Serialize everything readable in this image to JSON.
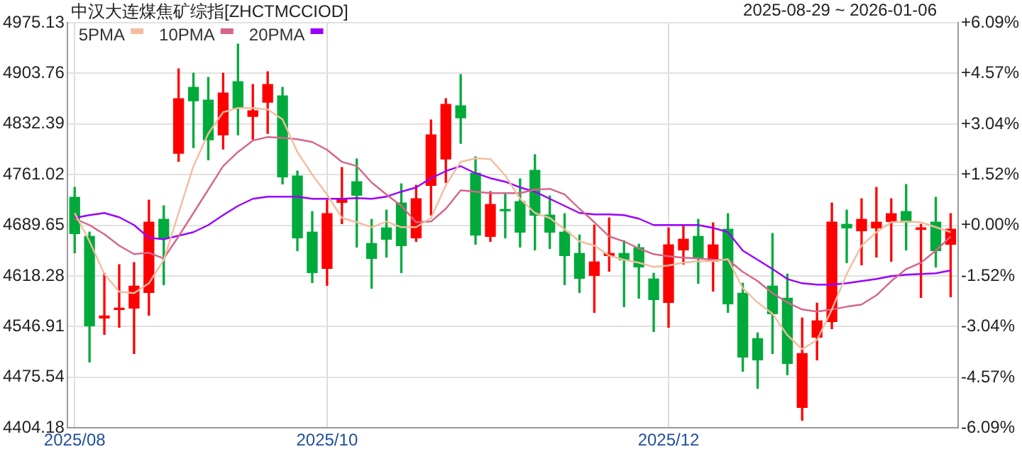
{
  "chart_data": {
    "type": "candlestick",
    "title": "中汉大连煤焦矿综指[ZHCTMCCIOD]",
    "subtitle": "2025-08-29 ~ 2026-01-06",
    "categories": [
      "2025/08",
      null,
      null,
      null,
      null,
      null,
      null,
      null,
      null,
      null,
      null,
      null,
      null,
      null,
      null,
      null,
      null,
      "2025/10",
      null,
      null,
      null,
      null,
      null,
      null,
      null,
      null,
      null,
      null,
      null,
      null,
      null,
      null,
      null,
      null,
      null,
      null,
      null,
      null,
      null,
      null,
      "2025/12",
      null,
      null,
      null,
      null,
      null,
      null,
      null,
      null,
      null,
      null,
      null,
      null,
      null,
      null,
      null,
      null,
      null,
      null,
      null
    ],
    "ohlc": [
      [
        4729,
        4743,
        4651,
        4678
      ],
      [
        4674,
        4680,
        4497,
        4548
      ],
      [
        4559,
        4622,
        4536,
        4562
      ],
      [
        4571,
        4634,
        4546,
        4573
      ],
      [
        4573,
        4637,
        4509,
        4604
      ],
      [
        4595,
        4725,
        4563,
        4694
      ],
      [
        4698,
        4717,
        4606,
        4672
      ],
      [
        4791,
        4910,
        4780,
        4868
      ],
      [
        4884,
        4904,
        4799,
        4865
      ],
      [
        4866,
        4898,
        4782,
        4810
      ],
      [
        4817,
        4904,
        4797,
        4876
      ],
      [
        4892,
        4945,
        4817,
        4855
      ],
      [
        4843,
        4888,
        4811,
        4851
      ],
      [
        4863,
        4906,
        4819,
        4888
      ],
      [
        4872,
        4884,
        4748,
        4758
      ],
      [
        4759,
        4766,
        4654,
        4672
      ],
      [
        4680,
        4709,
        4609,
        4623
      ],
      [
        4629,
        4725,
        4605,
        4706
      ],
      [
        4722,
        4771,
        4692,
        4727
      ],
      [
        4751,
        4783,
        4659,
        4732
      ],
      [
        4664,
        4698,
        4601,
        4643
      ],
      [
        4686,
        4711,
        4645,
        4670
      ],
      [
        4721,
        4748,
        4623,
        4661
      ],
      [
        4672,
        4746,
        4667,
        4727
      ],
      [
        4746,
        4838,
        4704,
        4817
      ],
      [
        4783,
        4868,
        4750,
        4860
      ],
      [
        4858,
        4902,
        4805,
        4841
      ],
      [
        4763,
        4786,
        4663,
        4676
      ],
      [
        4674,
        4737,
        4667,
        4719
      ],
      [
        4711,
        4735,
        4672,
        4710
      ],
      [
        4723,
        4755,
        4659,
        4680
      ],
      [
        4767,
        4789,
        4655,
        4704
      ],
      [
        4704,
        4731,
        4657,
        4680
      ],
      [
        4680,
        4706,
        4606,
        4647
      ],
      [
        4650,
        4676,
        4595,
        4615
      ],
      [
        4619,
        4690,
        4567,
        4638
      ],
      [
        4647,
        4700,
        4625,
        4650
      ],
      [
        4650,
        4668,
        4575,
        4641
      ],
      [
        4658,
        4663,
        4587,
        4631
      ],
      [
        4614,
        4622,
        4540,
        4585
      ],
      [
        4581,
        4686,
        4546,
        4662
      ],
      [
        4655,
        4690,
        4635,
        4670
      ],
      [
        4674,
        4698,
        4608,
        4643
      ],
      [
        4639,
        4693,
        4597,
        4662
      ],
      [
        4684,
        4706,
        4567,
        4579
      ],
      [
        4594,
        4608,
        4484,
        4504
      ],
      [
        4530,
        4538,
        4460,
        4500
      ],
      [
        4604,
        4678,
        4509,
        4565
      ],
      [
        4587,
        4621,
        4479,
        4495
      ],
      [
        4433,
        4559,
        4415,
        4509
      ],
      [
        4532,
        4580,
        4500,
        4555
      ],
      [
        4554,
        4721,
        4544,
        4694
      ],
      [
        4691,
        4711,
        4637,
        4686
      ],
      [
        4682,
        4727,
        4634,
        4698
      ],
      [
        4686,
        4743,
        4645,
        4694
      ],
      [
        4695,
        4727,
        4639,
        4706
      ],
      [
        4709,
        4747,
        4655,
        4694
      ],
      [
        4684,
        4691,
        4588,
        4686
      ],
      [
        4694,
        4729,
        4631,
        4654
      ],
      [
        4663,
        4706,
        4589,
        4684
      ]
    ],
    "colors": [
      "#00aa3b",
      "#00aa3b",
      "#ff0000",
      "#ff0000",
      "#ff0000",
      "#ff0000",
      "#00aa3b",
      "#ff0000",
      "#00aa3b",
      "#00aa3b",
      "#ff0000",
      "#00aa3b",
      "#ff0000",
      "#ff0000",
      "#00aa3b",
      "#00aa3b",
      "#00aa3b",
      "#ff0000",
      "#ff0000",
      "#00aa3b",
      "#00aa3b",
      "#00aa3b",
      "#00aa3b",
      "#ff0000",
      "#ff0000",
      "#ff0000",
      "#00aa3b",
      "#00aa3b",
      "#ff0000",
      "#00aa3b",
      "#00aa3b",
      "#00aa3b",
      "#00aa3b",
      "#00aa3b",
      "#00aa3b",
      "#ff0000",
      "#ff0000",
      "#00aa3b",
      "#00aa3b",
      "#00aa3b",
      "#ff0000",
      "#ff0000",
      "#00aa3b",
      "#ff0000",
      "#00aa3b",
      "#00aa3b",
      "#00aa3b",
      "#00aa3b",
      "#00aa3b",
      "#ff0000",
      "#ff0000",
      "#ff0000",
      "#00aa3b",
      "#ff0000",
      "#ff0000",
      "#ff0000",
      "#00aa3b",
      "#ff0000",
      "#00aa3b",
      "#ff0000"
    ],
    "series": [
      {
        "type": "line",
        "name": "5PMA",
        "color": "#f4bc9e",
        "values": [
          4707,
          4667,
          4621,
          4596,
          4594,
          4608,
          4641,
          4707,
          4773,
          4819,
          4849,
          4855,
          4855,
          4853,
          4839,
          4793,
          4761,
          4733,
          4700,
          4694,
          4687,
          4695,
          4687,
          4687,
          4700,
          4746,
          4779,
          4784,
          4783,
          4760,
          4727,
          4707,
          4700,
          4684,
          4667,
          4661,
          4647,
          4641,
          4637,
          4631,
          4633,
          4637,
          4639,
          4639,
          4642,
          4601,
          4581,
          4565,
          4535,
          4515,
          4528,
          4571,
          4621,
          4661,
          4680,
          4694,
          4695,
          4694,
          4687,
          4680
        ]
      },
      {
        "type": "line",
        "name": "10PMA",
        "color": "#d4668a",
        "values": [
          4699,
          4690,
          4677,
          4661,
          4649,
          4651,
          4643,
          4674,
          4707,
          4740,
          4773,
          4793,
          4809,
          4814,
          4813,
          4811,
          4807,
          4796,
          4779,
          4773,
          4750,
          4733,
          4717,
          4694,
          4695,
          4713,
          4739,
          4737,
          4735,
          4735,
          4735,
          4740,
          4741,
          4733,
          4713,
          4694,
          4674,
          4667,
          4657,
          4649,
          4646,
          4644,
          4643,
          4641,
          4641,
          4624,
          4611,
          4594,
          4581,
          4571,
          4568,
          4571,
          4575,
          4578,
          4591,
          4611,
          4628,
          4637,
          4654,
          4674
        ]
      },
      {
        "type": "line",
        "name": "20PMA",
        "color": "#9900ff",
        "values": [
          4700,
          4704,
          4707,
          4701,
          4690,
          4672,
          4670,
          4675,
          4680,
          4690,
          4704,
          4717,
          4727,
          4730,
          4730,
          4730,
          4727,
          4727,
          4727,
          4728,
          4727,
          4730,
          4737,
          4743,
          4756,
          4766,
          4773,
          4763,
          4756,
          4751,
          4743,
          4737,
          4727,
          4717,
          4707,
          4705,
          4705,
          4704,
          4699,
          4690,
          4690,
          4690,
          4690,
          4686,
          4680,
          4654,
          4641,
          4628,
          4614,
          4608,
          4606,
          4606,
          4608,
          4611,
          4614,
          4618,
          4620,
          4621,
          4622,
          4626
        ]
      }
    ],
    "ylim": [
      4404.18,
      4975.13
    ],
    "yticks": [
      4404.18,
      4475.54,
      4546.91,
      4618.28,
      4689.65,
      4761.02,
      4832.39,
      4903.76,
      4975.13
    ],
    "y2lim": [
      -6.09,
      6.09
    ],
    "y2ticks": [
      {
        "value": -6.09,
        "label": "-6.09%"
      },
      {
        "value": -4.57,
        "label": "-4.57%"
      },
      {
        "value": -3.04,
        "label": "-3.04%"
      },
      {
        "value": -1.52,
        "label": "-1.52%"
      },
      {
        "value": 0,
        "label": "+0.00%"
      },
      {
        "value": 1.52,
        "label": "+1.52%"
      },
      {
        "value": 3.04,
        "label": "+3.04%"
      },
      {
        "value": 4.57,
        "label": "+4.57%"
      },
      {
        "value": 6.09,
        "label": "+6.09%"
      }
    ],
    "grid": true,
    "legend": "top left",
    "marker": "none"
  }
}
